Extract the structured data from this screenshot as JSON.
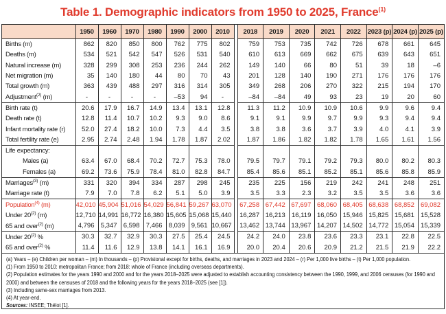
{
  "colors": {
    "accent_red": "#e03a2c",
    "header_bg": "#f9dac8",
    "border": "#2b2b2b",
    "text": "#1a1a1a"
  },
  "title": {
    "text": "Table 1. Demographic indicators from 1950 to 2025, France",
    "superscript": "(1)"
  },
  "table": {
    "columns": [
      "1950",
      "1960",
      "1970",
      "1980",
      "1990",
      "2000",
      "2010",
      "2018",
      "2019",
      "2020",
      "2021",
      "2022",
      "2023 (p)",
      "2024 (p)",
      "2025 (p)"
    ],
    "sections": [
      {
        "rows": [
          {
            "pre": "Births (m)",
            "sup": "",
            "post": "",
            "values": [
              "862",
              "820",
              "850",
              "800",
              "762",
              "775",
              "802",
              "759",
              "753",
              "735",
              "742",
              "726",
              "678",
              "661",
              "645"
            ]
          },
          {
            "pre": "Deaths (m)",
            "sup": "",
            "post": "",
            "values": [
              "534",
              "521",
              "542",
              "547",
              "526",
              "531",
              "540",
              "610",
              "613",
              "669",
              "662",
              "675",
              "639",
              "643",
              "651"
            ]
          },
          {
            "pre": "Natural increase (m)",
            "sup": "",
            "post": "",
            "values": [
              "328",
              "299",
              "308",
              "253",
              "236",
              "244",
              "262",
              "149",
              "140",
              "66",
              "80",
              "51",
              "39",
              "18",
              "–6"
            ]
          },
          {
            "pre": "Net migration (m)",
            "sup": "",
            "post": "",
            "values": [
              "35",
              "140",
              "180",
              "44",
              "80",
              "70",
              "43",
              "201",
              "128",
              "140",
              "190",
              "271",
              "176",
              "176",
              "176"
            ]
          },
          {
            "pre": "Total growth (m)",
            "sup": "",
            "post": "",
            "values": [
              "363",
              "439",
              "488",
              "297",
              "316",
              "314",
              "305",
              "349",
              "268",
              "206",
              "270",
              "322",
              "215",
              "194",
              "170"
            ]
          },
          {
            "pre": "Adjustment",
            "sup": "(2)",
            "post": " (m)",
            "values": [
              "-",
              "-",
              "-",
              "-",
              "–53",
              "94",
              "-",
              "–84",
              "–84",
              "49",
              "93",
              "23",
              "19",
              "20",
              "60"
            ]
          }
        ]
      },
      {
        "rows": [
          {
            "pre": "Birth rate (t)",
            "sup": "",
            "post": "",
            "values": [
              "20.6",
              "17.9",
              "16.7",
              "14.9",
              "13.4",
              "13.1",
              "12.8",
              "11.3",
              "11.2",
              "10.9",
              "10.9",
              "10.6",
              "9.9",
              "9.6",
              "9.4"
            ]
          },
          {
            "pre": "Death rate (t)",
            "sup": "",
            "post": "",
            "values": [
              "12.8",
              "11.4",
              "10.7",
              "10.2",
              "9.3",
              "9.0",
              "8.6",
              "9.1",
              "9.1",
              "9.9",
              "9.7",
              "9.9",
              "9.3",
              "9.4",
              "9.4"
            ]
          },
          {
            "pre": "Infant mortality rate (r)",
            "sup": "",
            "post": "",
            "values": [
              "52.0",
              "27.4",
              "18.2",
              "10.0",
              "7.3",
              "4.4",
              "3.5",
              "3.8",
              "3.8",
              "3.6",
              "3.7",
              "3.9",
              "4.0",
              "4.1",
              "3.9"
            ]
          },
          {
            "pre": "Total fertility rate (e)",
            "sup": "",
            "post": "",
            "values": [
              "2.95",
              "2.74",
              "2.48",
              "1.94",
              "1.78",
              "1.87",
              "2.02",
              "1.87",
              "1.86",
              "1.82",
              "1.82",
              "1.78",
              "1.65",
              "1.61",
              "1.56"
            ]
          }
        ]
      },
      {
        "rows": [
          {
            "pre": "Life expectancy:",
            "sup": "",
            "post": "",
            "values": [
              "",
              "",
              "",
              "",
              "",
              "",
              "",
              "",
              "",
              "",
              "",
              "",
              "",
              "",
              ""
            ]
          },
          {
            "pre": "Males (a)",
            "sup": "",
            "post": "",
            "indent": true,
            "values": [
              "63.4",
              "67.0",
              "68.4",
              "70.2",
              "72.7",
              "75.3",
              "78.0",
              "79.5",
              "79.7",
              "79.1",
              "79.2",
              "79.3",
              "80.0",
              "80.2",
              "80.3"
            ]
          },
          {
            "pre": "Females (a)",
            "sup": "",
            "post": "",
            "indent": true,
            "values": [
              "69.2",
              "73.6",
              "75.9",
              "78.4",
              "81.0",
              "82.8",
              "84.7",
              "85.4",
              "85.6",
              "85.1",
              "85.2",
              "85.1",
              "85.6",
              "85.8",
              "85.9"
            ]
          }
        ]
      },
      {
        "rows": [
          {
            "pre": "Marriages",
            "sup": "(3)",
            "post": " (m)",
            "values": [
              "331",
              "320",
              "394",
              "334",
              "287",
              "298",
              "245",
              "235",
              "225",
              "156",
              "219",
              "242",
              "241",
              "248",
              "251"
            ]
          },
          {
            "pre": "Marriage rate (t)",
            "sup": "",
            "post": "",
            "values": [
              "7.9",
              "7.0",
              "7.8",
              "6.2",
              "5.1",
              "5.0",
              "3.9",
              "3.5",
              "3.3",
              "2.3",
              "3.2",
              "3.5",
              "3.5",
              "3.6",
              "3.6"
            ]
          }
        ]
      },
      {
        "rows": [
          {
            "pre": "Population",
            "sup": "(4)",
            "post": " (m)",
            "red": true,
            "values": [
              "42,010",
              "45,904",
              "51,016",
              "54,029",
              "56,841",
              "59,267",
              "63,070",
              "67,258",
              "67,442",
              "67,697",
              "68,060",
              "68,405",
              "68,638",
              "68,852",
              "69,082"
            ]
          },
          {
            "pre": "Under 20",
            "sup": "(2)",
            "post": " (m)",
            "values": [
              "12,710",
              "14,991",
              "16,772",
              "16,380",
              "15,605",
              "15,068",
              "15,440",
              "16,287",
              "16,213",
              "16,119",
              "16,050",
              "15,946",
              "15,825",
              "15,681",
              "15,528"
            ]
          },
          {
            "pre": "65 and over",
            "sup": "(2)",
            "post": " (m)",
            "values": [
              "4,796",
              "5,347",
              "6,598",
              "7,466",
              "8,039",
              "9,561",
              "10,667",
              "13,462",
              "13,744",
              "13,967",
              "14,207",
              "14,502",
              "14,772",
              "15,054",
              "15,339"
            ]
          }
        ]
      },
      {
        "rows": [
          {
            "pre": "Under 20",
            "sup": "(2)",
            "post": " %",
            "values": [
              "30.3",
              "32.7",
              "32.9",
              "30.3",
              "27.5",
              "25.4",
              "24.5",
              "24.2",
              "24.0",
              "23.8",
              "23.6",
              "23.3",
              "23.1",
              "22.8",
              "22.5"
            ]
          },
          {
            "pre": "65 and over",
            "sup": "(2)",
            "post": " %",
            "values": [
              "11.4",
              "11.6",
              "12.9",
              "13.8",
              "14.1",
              "16.1",
              "16.9",
              "20.0",
              "20.4",
              "20.6",
              "20.9",
              "21.2",
              "21.5",
              "21.9",
              "22.2"
            ]
          }
        ]
      }
    ]
  },
  "footnotes": [
    "(a) Years – (e) Children per woman – (m) In thousands – (p) Provisional except for births, deaths, and marriages in 2023 and 2024 – (r) Per 1,000 live births – (t) Per 1,000 population.",
    "(1) From 1950 to 2010: metropolitan France; from 2018: whole of France (including overseas departments).",
    "(2) Population estimates for the years 1990 and 2000 and for the years 2018–2025 were adjusted to establish accounting consistency between the 1990, 1999, and 2006 censuses (for 1990 and 2000) and between the censuses of 2018 and the following years for the years 2018–2025 (see [1]).",
    "(3) Including same-sex marriages from 2013.",
    "(4) At year-end."
  ],
  "sources": {
    "label": "Sources:",
    "text": " INSEE; Thélot [1]."
  }
}
